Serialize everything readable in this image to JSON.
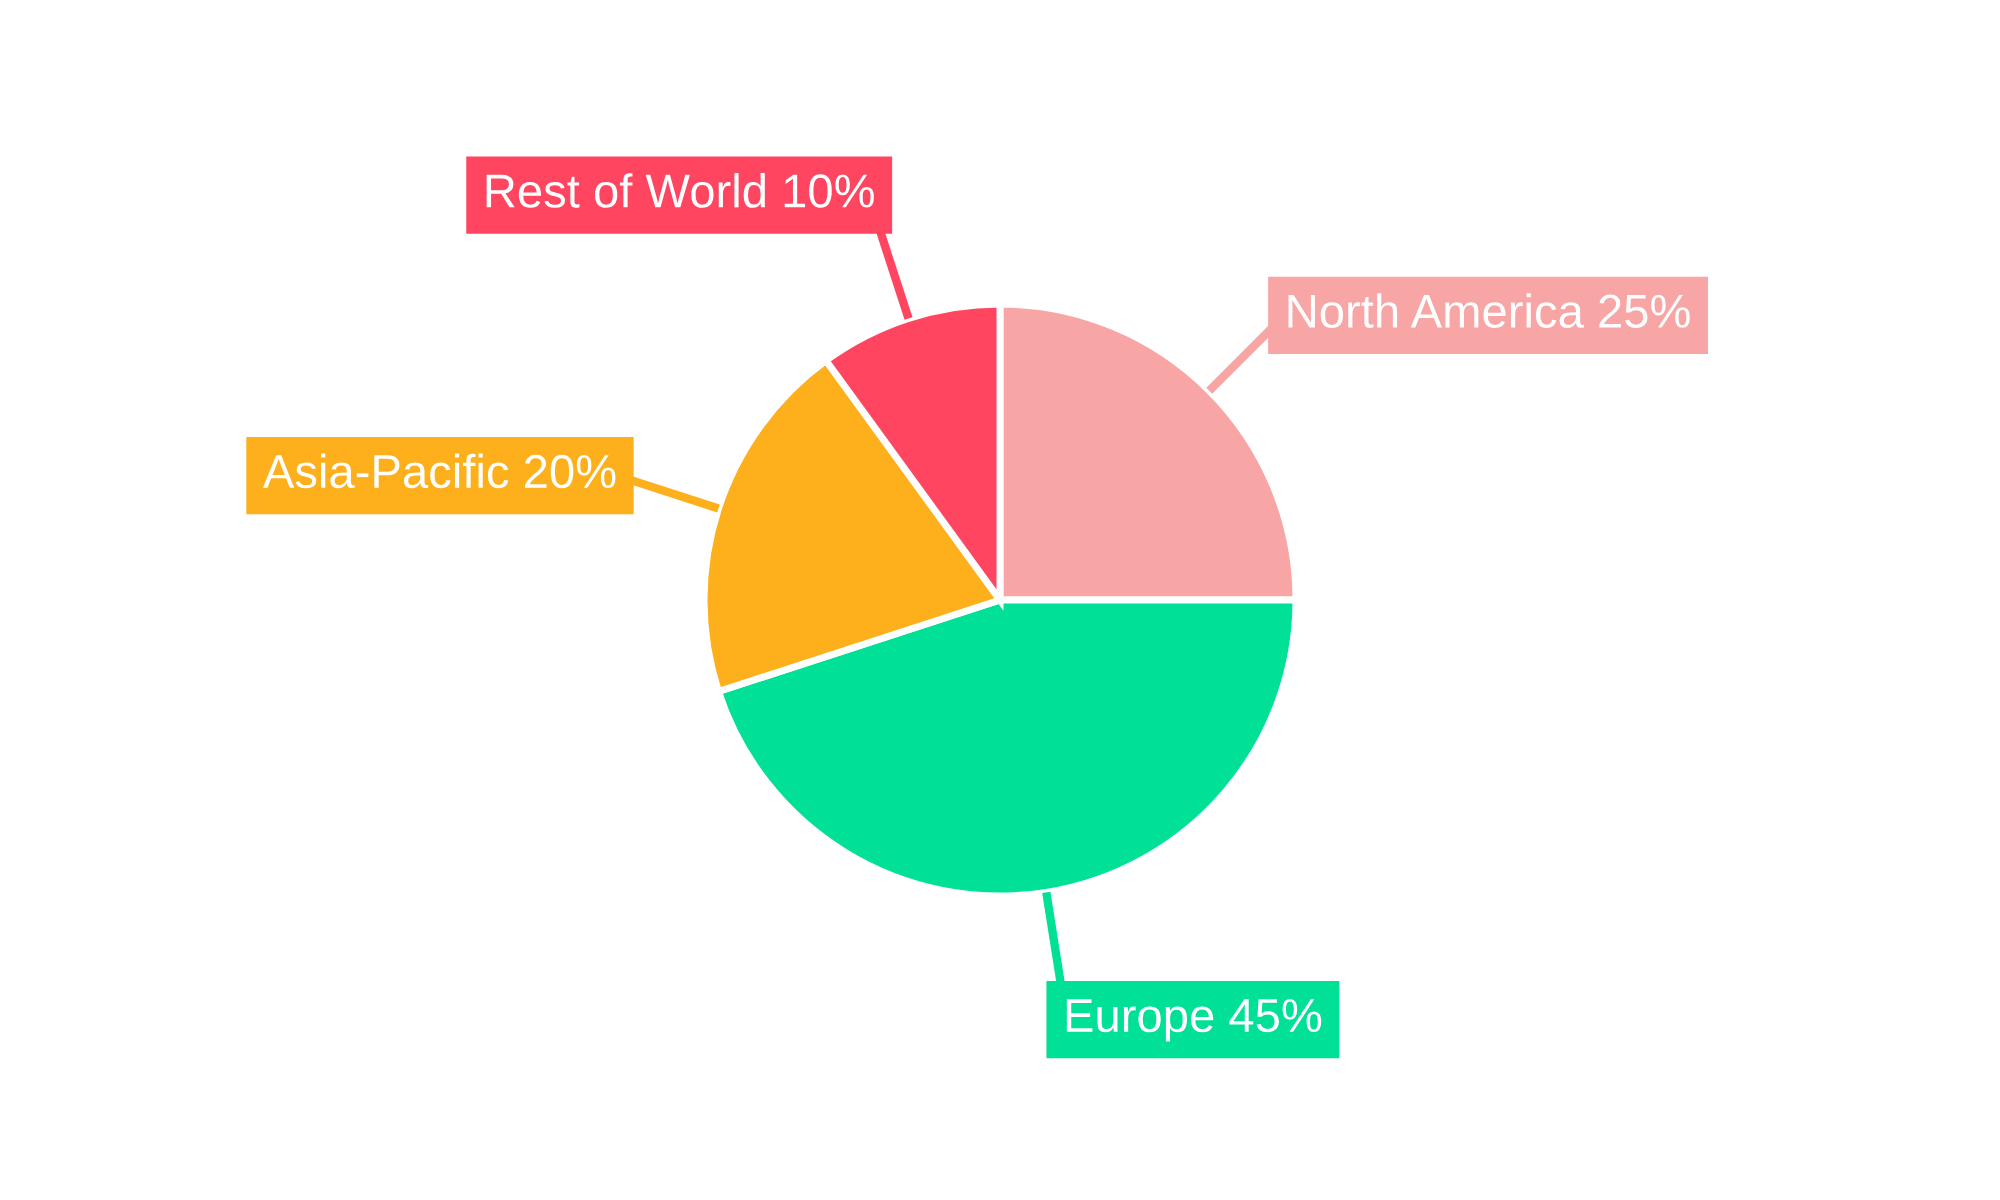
{
  "chart_data": {
    "type": "pie",
    "categories": [
      "North America",
      "Europe",
      "Asia-Pacific",
      "Rest of World"
    ],
    "values": [
      25,
      45,
      20,
      10
    ],
    "value_labels": [
      "25%",
      "45%",
      "20%",
      "10%"
    ],
    "colors": [
      "#f8a5a5",
      "#00e096",
      "#fdb01b",
      "#ff4560"
    ],
    "legend": false
  }
}
